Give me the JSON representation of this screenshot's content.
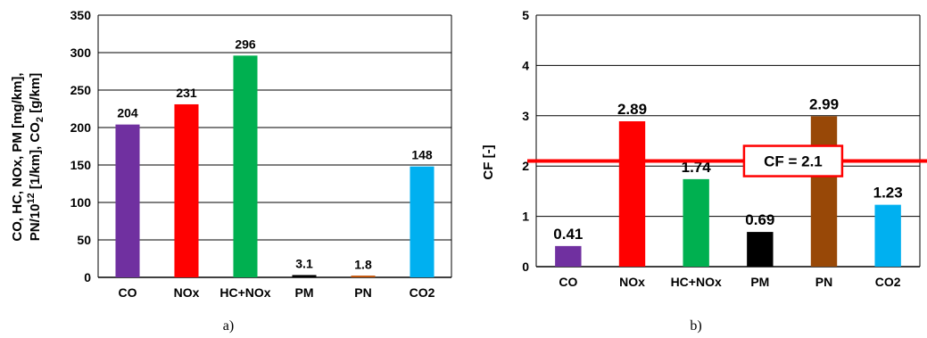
{
  "chart_data": [
    {
      "type": "bar",
      "panel_label": "a)",
      "ylabel_line1": "CO, HC, NOx, PM [mg/km],",
      "ylabel_line2_pre": "PN/10",
      "ylabel_line2_sup": "12",
      "ylabel_line2_mid": " [1/km], CO",
      "ylabel_line2_sub": "2",
      "ylabel_line2_post": " [g/km]",
      "ylim": [
        0,
        350
      ],
      "yticks": [
        0,
        50,
        100,
        150,
        200,
        250,
        300,
        350
      ],
      "grid": true,
      "categories": [
        "CO",
        "NOx",
        "HC+NOx",
        "PM",
        "PN",
        "CO2"
      ],
      "values": [
        204,
        231,
        296,
        3.1,
        1.8,
        148
      ],
      "value_labels": [
        "204",
        "231",
        "296",
        "3.1",
        "1.8",
        "148"
      ],
      "colors": [
        "#7030a0",
        "#ff0000",
        "#00b050",
        "#000000",
        "#c55a11",
        "#00b0f0"
      ]
    },
    {
      "type": "bar",
      "panel_label": "b)",
      "ylabel": "CF [-]",
      "ylim": [
        0,
        5
      ],
      "yticks": [
        0,
        1,
        2,
        3,
        4,
        5
      ],
      "grid": true,
      "categories": [
        "CO",
        "NOx",
        "HC+NOx",
        "PM",
        "PN",
        "CO2"
      ],
      "values": [
        0.41,
        2.89,
        1.74,
        0.69,
        2.99,
        1.23
      ],
      "value_labels": [
        "0.41",
        "2.89",
        "1.74",
        "0.69",
        "2.99",
        "1.23"
      ],
      "colors": [
        "#7030a0",
        "#ff0000",
        "#00b050",
        "#000000",
        "#984807",
        "#00b0f0"
      ],
      "reference_line": {
        "value": 2.1,
        "label": "CF = 2.1",
        "color": "#ff0000"
      }
    }
  ]
}
